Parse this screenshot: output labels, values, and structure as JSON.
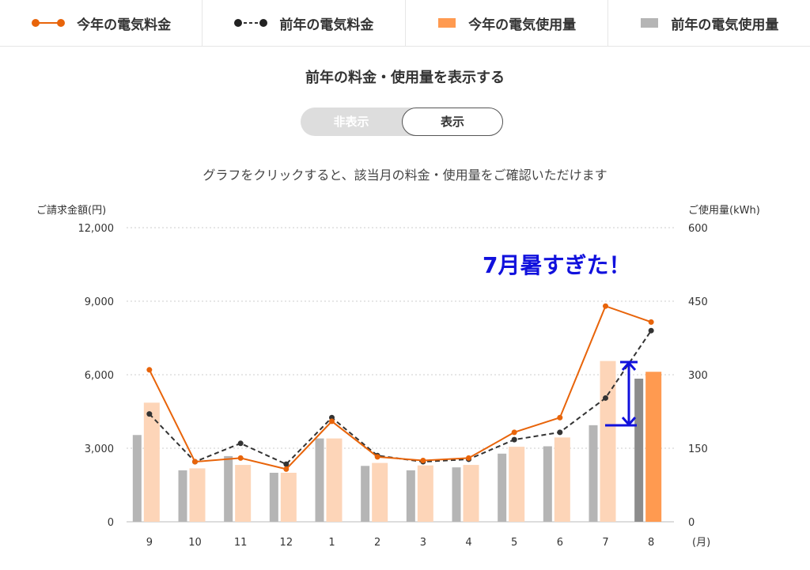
{
  "legend": [
    {
      "label": "今年の電気料金",
      "icon": "orange-line-dot-icon"
    },
    {
      "label": "前年の電気料金",
      "icon": "black-dashed-dot-icon"
    },
    {
      "label": "今年の電気使用量",
      "icon": "orange-bar-icon"
    },
    {
      "label": "前年の電気使用量",
      "icon": "gray-bar-icon"
    }
  ],
  "section_title": "前年の料金・使用量を表示する",
  "toggle": {
    "off_label": "非表示",
    "on_label": "表示",
    "selected": "表示"
  },
  "instruction": "グラフをクリックすると、該当月の料金・使用量をご確認いただけます",
  "annotation": "7月暑すぎた！",
  "colors": {
    "this_year_line": "#e8640a",
    "last_year_line": "#333333",
    "this_year_bar": "#fdd5b8",
    "this_year_bar_selected": "#ff9a50",
    "last_year_bar": "#b5b5b5",
    "last_year_bar_selected": "#8c8c8c",
    "annotation": "#1111dd"
  },
  "chart_data": {
    "type": "bar",
    "categories": [
      "9",
      "10",
      "11",
      "12",
      "1",
      "2",
      "3",
      "4",
      "5",
      "6",
      "7",
      "8"
    ],
    "x_unit": "(月)",
    "y_left": {
      "label": "ご請求金額(円)",
      "ticks": [
        "0",
        "3,000",
        "6,000",
        "9,000",
        "12,000"
      ],
      "range": [
        0,
        12000
      ]
    },
    "y_right": {
      "label": "ご使用量(kWh)",
      "ticks": [
        "0",
        "150",
        "300",
        "450",
        "600"
      ],
      "range": [
        0,
        600
      ]
    },
    "grid": true,
    "selected_month": "8",
    "series": [
      {
        "name": "前年の電気使用量",
        "kind": "bar",
        "axis": "right",
        "values": [
          177,
          105,
          134,
          100,
          170,
          114,
          105,
          111,
          139,
          154,
          197,
          292
        ]
      },
      {
        "name": "今年の電気使用量",
        "kind": "bar",
        "axis": "right",
        "values": [
          243,
          109,
          116,
          100,
          170,
          120,
          115,
          116,
          153,
          172,
          328,
          306
        ]
      },
      {
        "name": "今年の電気料金",
        "kind": "line",
        "axis": "left",
        "values": [
          6200,
          2450,
          2600,
          2150,
          4100,
          2650,
          2500,
          2600,
          3650,
          4250,
          8800,
          8150
        ]
      },
      {
        "name": "前年の電気料金",
        "kind": "line",
        "axis": "left",
        "values": [
          4400,
          2450,
          3200,
          2350,
          4250,
          2700,
          2450,
          2550,
          3350,
          3650,
          5050,
          7800
        ]
      }
    ]
  }
}
